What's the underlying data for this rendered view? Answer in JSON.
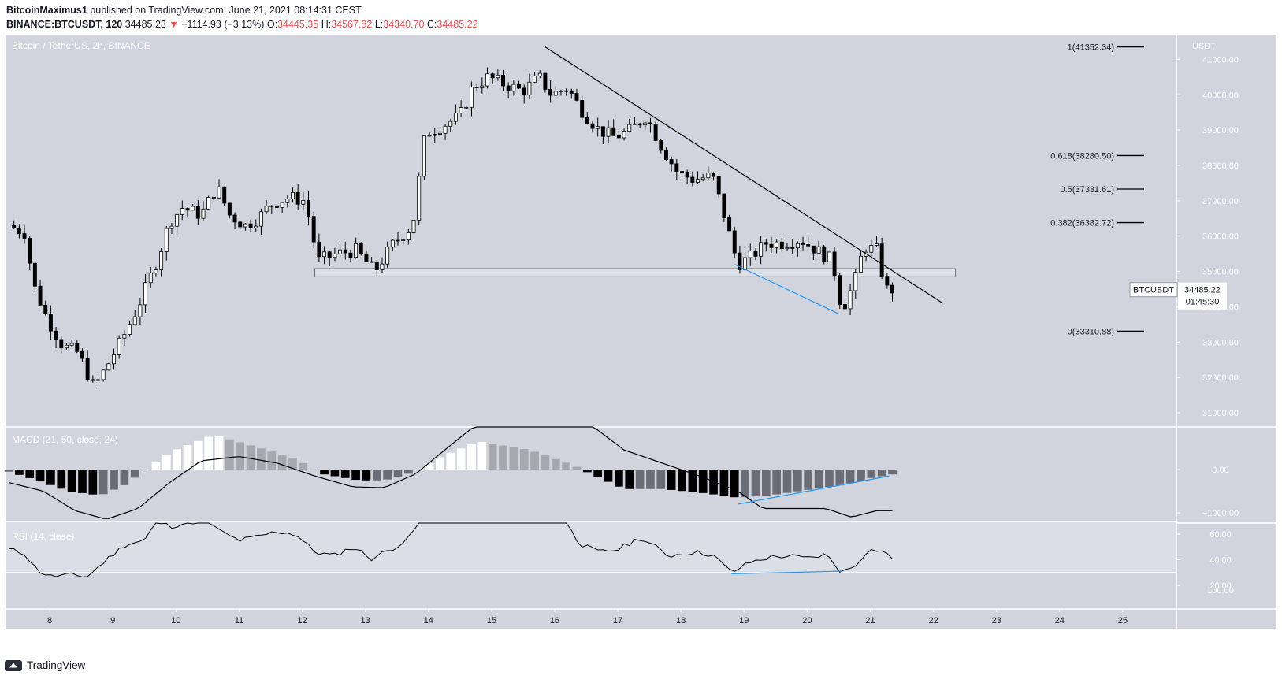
{
  "header": {
    "publisher": "BitcoinMaximus1",
    "published_text": " published on TradingView.com, June 21, 2021 08:14:31 CEST",
    "symbol_line": "BINANCE:BTCUSDT, 120",
    "last": "34485.23",
    "change_arrow": "▼",
    "change": "−1114.93 (−3.13%)",
    "o_label": "O:",
    "o": "34445.35",
    "h_label": "H:",
    "h": "34567.82",
    "l_label": "L:",
    "l": "34340.70",
    "c_label": "C:",
    "c": "34485.22"
  },
  "chart_data": [
    {
      "type": "candlestick",
      "title": "Bitcoin / TetherUS, 2h, BINANCE",
      "y_axis_unit": "USDT",
      "ylim": [
        30600,
        41700
      ],
      "y_ticks": [
        31000,
        32000,
        33000,
        34000,
        35000,
        36000,
        37000,
        38000,
        39000,
        40000,
        41000
      ],
      "y_tick_labels": [
        "31000.00",
        "32000.00",
        "33000.00",
        "34000.00",
        "35000.00",
        "36000.00",
        "37000.00",
        "38000.00",
        "39000.00",
        "40000.00",
        "41000.00"
      ],
      "x_ticks": [
        "8",
        "9",
        "10",
        "11",
        "12",
        "13",
        "14",
        "15",
        "16",
        "17",
        "18",
        "19",
        "20",
        "21",
        "22",
        "23",
        "24",
        "25"
      ],
      "x_tick_day": [
        8,
        9,
        10,
        11,
        12,
        13,
        14,
        15,
        16,
        17,
        18,
        19,
        20,
        21,
        22,
        23,
        24,
        25
      ],
      "xlim_day": [
        7.3,
        25.85
      ],
      "ohlc_anchor_points": [
        {
          "day": 7.35,
          "price": 36300
        },
        {
          "day": 7.6,
          "price": 36100
        },
        {
          "day": 7.75,
          "price": 34600
        },
        {
          "day": 7.95,
          "price": 33700
        },
        {
          "day": 8.2,
          "price": 32900
        },
        {
          "day": 8.45,
          "price": 32700
        },
        {
          "day": 8.7,
          "price": 31700
        },
        {
          "day": 8.9,
          "price": 32300
        },
        {
          "day": 9.15,
          "price": 33100
        },
        {
          "day": 9.4,
          "price": 34000
        },
        {
          "day": 9.7,
          "price": 35300
        },
        {
          "day": 9.9,
          "price": 36400
        },
        {
          "day": 10.1,
          "price": 36800
        },
        {
          "day": 10.4,
          "price": 36600
        },
        {
          "day": 10.65,
          "price": 37400
        },
        {
          "day": 10.85,
          "price": 36600
        },
        {
          "day": 11.1,
          "price": 36300
        },
        {
          "day": 11.3,
          "price": 36500
        },
        {
          "day": 11.5,
          "price": 36900
        },
        {
          "day": 11.8,
          "price": 37100
        },
        {
          "day": 12.05,
          "price": 37000
        },
        {
          "day": 12.25,
          "price": 35300
        },
        {
          "day": 12.55,
          "price": 35500
        },
        {
          "day": 12.85,
          "price": 35600
        },
        {
          "day": 13.15,
          "price": 35000
        },
        {
          "day": 13.45,
          "price": 35800
        },
        {
          "day": 13.75,
          "price": 36300
        },
        {
          "day": 13.95,
          "price": 38900
        },
        {
          "day": 14.2,
          "price": 39100
        },
        {
          "day": 14.5,
          "price": 39400
        },
        {
          "day": 14.7,
          "price": 40200
        },
        {
          "day": 14.95,
          "price": 40500
        },
        {
          "day": 15.2,
          "price": 40300
        },
        {
          "day": 15.5,
          "price": 40100
        },
        {
          "day": 15.75,
          "price": 40500
        },
        {
          "day": 15.95,
          "price": 40000
        },
        {
          "day": 16.2,
          "price": 40200
        },
        {
          "day": 16.45,
          "price": 39500
        },
        {
          "day": 16.7,
          "price": 39000
        },
        {
          "day": 16.95,
          "price": 38800
        },
        {
          "day": 17.2,
          "price": 39000
        },
        {
          "day": 17.45,
          "price": 39400
        },
        {
          "day": 17.7,
          "price": 38500
        },
        {
          "day": 17.95,
          "price": 37800
        },
        {
          "day": 18.2,
          "price": 37600
        },
        {
          "day": 18.5,
          "price": 37700
        },
        {
          "day": 18.7,
          "price": 36500
        },
        {
          "day": 18.9,
          "price": 35200
        },
        {
          "day": 19.1,
          "price": 35400
        },
        {
          "day": 19.35,
          "price": 35800
        },
        {
          "day": 19.6,
          "price": 35800
        },
        {
          "day": 19.9,
          "price": 35900
        },
        {
          "day": 20.15,
          "price": 35600
        },
        {
          "day": 20.4,
          "price": 35300
        },
        {
          "day": 20.55,
          "price": 33900
        },
        {
          "day": 20.75,
          "price": 34700
        },
        {
          "day": 20.9,
          "price": 35700
        },
        {
          "day": 21.1,
          "price": 35600
        },
        {
          "day": 21.25,
          "price": 34500
        },
        {
          "day": 21.35,
          "price": 34485
        }
      ],
      "fibonacci_levels": [
        {
          "label": "1(41352.34)",
          "price": 41352.34
        },
        {
          "label": "0.618(38280.50)",
          "price": 38280.5
        },
        {
          "label": "0.5(37331.61)",
          "price": 37331.61
        },
        {
          "label": "0.382(36382.72)",
          "price": 36382.72
        },
        {
          "label": "0(33310.88)",
          "price": 33310.88
        }
      ],
      "trendline": {
        "from": {
          "day": 15.85,
          "price": 41352
        },
        "to": {
          "day": 22.15,
          "price": 34100
        }
      },
      "support_zone": {
        "from_day": 12.2,
        "to_day": 22.35,
        "low": 34850,
        "high": 35080
      },
      "divergence_line": {
        "from": {
          "day": 18.85,
          "price": 35200
        },
        "to": {
          "day": 20.5,
          "price": 33800
        }
      },
      "last_price_label": "BTCUSDT",
      "last_price": "34485.22",
      "countdown": "01:45:30"
    },
    {
      "type": "macd",
      "title": "MACD (21, 50, close, 24)",
      "y_ticks": [
        0,
        -1000
      ],
      "y_tick_labels": [
        "0.00",
        "−1000.00"
      ],
      "histogram_anchor_points": [
        {
          "day": 7.35,
          "value": -50
        },
        {
          "day": 7.8,
          "value": -250
        },
        {
          "day": 8.3,
          "value": -500
        },
        {
          "day": 8.8,
          "value": -600
        },
        {
          "day": 9.2,
          "value": -350
        },
        {
          "day": 9.5,
          "value": -30
        },
        {
          "day": 9.9,
          "value": 400
        },
        {
          "day": 10.6,
          "value": 800
        },
        {
          "day": 11.2,
          "value": 550
        },
        {
          "day": 11.9,
          "value": 250
        },
        {
          "day": 12.3,
          "value": -100
        },
        {
          "day": 12.9,
          "value": -250
        },
        {
          "day": 13.3,
          "value": -250
        },
        {
          "day": 13.8,
          "value": -50
        },
        {
          "day": 14.2,
          "value": 300
        },
        {
          "day": 14.8,
          "value": 650
        },
        {
          "day": 15.6,
          "value": 450
        },
        {
          "day": 16.3,
          "value": 100
        },
        {
          "day": 16.5,
          "value": -50
        },
        {
          "day": 17.1,
          "value": -450
        },
        {
          "day": 17.7,
          "value": -450
        },
        {
          "day": 18.4,
          "value": -550
        },
        {
          "day": 18.9,
          "value": -650
        },
        {
          "day": 19.4,
          "value": -600
        },
        {
          "day": 20.1,
          "value": -450
        },
        {
          "day": 20.6,
          "value": -350
        },
        {
          "day": 21.0,
          "value": -200
        },
        {
          "day": 21.4,
          "value": -100
        }
      ],
      "macd_line_anchor_points": [
        {
          "day": 7.35,
          "value": -300
        },
        {
          "day": 7.9,
          "value": -500
        },
        {
          "day": 8.4,
          "value": -950
        },
        {
          "day": 8.9,
          "value": -1150
        },
        {
          "day": 9.4,
          "value": -900
        },
        {
          "day": 9.9,
          "value": -300
        },
        {
          "day": 10.4,
          "value": 200
        },
        {
          "day": 11.0,
          "value": 300
        },
        {
          "day": 11.6,
          "value": 150
        },
        {
          "day": 12.2,
          "value": -150
        },
        {
          "day": 12.8,
          "value": -400
        },
        {
          "day": 13.3,
          "value": -420
        },
        {
          "day": 13.8,
          "value": -100
        },
        {
          "day": 14.3,
          "value": 500
        },
        {
          "day": 14.9,
          "value": 1200
        },
        {
          "day": 15.4,
          "value": 1600
        },
        {
          "day": 16.1,
          "value": 1400
        },
        {
          "day": 16.6,
          "value": 1000
        },
        {
          "day": 17.1,
          "value": 450
        },
        {
          "day": 17.7,
          "value": 150
        },
        {
          "day": 18.3,
          "value": -150
        },
        {
          "day": 18.9,
          "value": -500
        },
        {
          "day": 19.3,
          "value": -900
        },
        {
          "day": 19.8,
          "value": -900
        },
        {
          "day": 20.3,
          "value": -900
        },
        {
          "day": 20.7,
          "value": -1100
        },
        {
          "day": 21.1,
          "value": -950
        },
        {
          "day": 21.4,
          "value": -950
        }
      ],
      "divergence_line": {
        "from": {
          "day": 18.9,
          "value": -800
        },
        "to": {
          "day": 21.3,
          "value": -150
        }
      }
    },
    {
      "type": "rsi",
      "title": "RSI (14, close)",
      "y_ticks": [
        60,
        40,
        20
      ],
      "y_tick_labels": [
        "60.00",
        "40.00",
        "20.00"
      ],
      "overlapping_tick_label": "100.00",
      "upper_band": 70,
      "lower_band": 30,
      "rsi_anchor_points": [
        {
          "day": 7.35,
          "value": 48
        },
        {
          "day": 7.6,
          "value": 45
        },
        {
          "day": 7.8,
          "value": 32
        },
        {
          "day": 8.0,
          "value": 27
        },
        {
          "day": 8.3,
          "value": 28
        },
        {
          "day": 8.6,
          "value": 27
        },
        {
          "day": 8.9,
          "value": 40
        },
        {
          "day": 9.2,
          "value": 52
        },
        {
          "day": 9.5,
          "value": 55
        },
        {
          "day": 9.7,
          "value": 70
        },
        {
          "day": 9.9,
          "value": 66
        },
        {
          "day": 10.1,
          "value": 68
        },
        {
          "day": 10.5,
          "value": 72
        },
        {
          "day": 10.7,
          "value": 62
        },
        {
          "day": 11.0,
          "value": 55
        },
        {
          "day": 11.3,
          "value": 58
        },
        {
          "day": 11.6,
          "value": 62
        },
        {
          "day": 11.9,
          "value": 60
        },
        {
          "day": 12.2,
          "value": 46
        },
        {
          "day": 12.5,
          "value": 43
        },
        {
          "day": 12.8,
          "value": 50
        },
        {
          "day": 13.1,
          "value": 41
        },
        {
          "day": 13.4,
          "value": 48
        },
        {
          "day": 13.7,
          "value": 57
        },
        {
          "day": 13.9,
          "value": 75
        },
        {
          "day": 14.3,
          "value": 80
        },
        {
          "day": 14.7,
          "value": 78
        },
        {
          "day": 15.1,
          "value": 74
        },
        {
          "day": 15.5,
          "value": 76
        },
        {
          "day": 15.8,
          "value": 72
        },
        {
          "day": 16.2,
          "value": 70
        },
        {
          "day": 16.4,
          "value": 52
        },
        {
          "day": 16.7,
          "value": 46
        },
        {
          "day": 17.0,
          "value": 48
        },
        {
          "day": 17.35,
          "value": 57
        },
        {
          "day": 17.6,
          "value": 50
        },
        {
          "day": 17.8,
          "value": 43
        },
        {
          "day": 18.2,
          "value": 46
        },
        {
          "day": 18.5,
          "value": 44
        },
        {
          "day": 18.8,
          "value": 30
        },
        {
          "day": 19.1,
          "value": 38
        },
        {
          "day": 19.4,
          "value": 42
        },
        {
          "day": 19.7,
          "value": 43
        },
        {
          "day": 20.0,
          "value": 41
        },
        {
          "day": 20.3,
          "value": 44
        },
        {
          "day": 20.55,
          "value": 30
        },
        {
          "day": 20.75,
          "value": 35
        },
        {
          "day": 20.95,
          "value": 47
        },
        {
          "day": 21.15,
          "value": 48
        },
        {
          "day": 21.35,
          "value": 41
        }
      ],
      "divergence_line": {
        "from": {
          "day": 18.8,
          "value": 29
        },
        "to": {
          "day": 20.55,
          "value": 31
        }
      }
    }
  ],
  "footer": {
    "brand": "TradingView"
  },
  "colors": {
    "pane_bg": "#d1d4dc",
    "rsi_band": "#dcdee5",
    "candle_up": "#ffffff",
    "candle_down": "#000000",
    "wick": "#000000",
    "accent_blue": "#2196f3",
    "trendline": "#000000",
    "hist_pos_strong": "#ffffff",
    "hist_pos_weak": "#a6a8ae",
    "hist_neg_strong": "#000000",
    "hist_neg_weak": "#6a6d75"
  }
}
